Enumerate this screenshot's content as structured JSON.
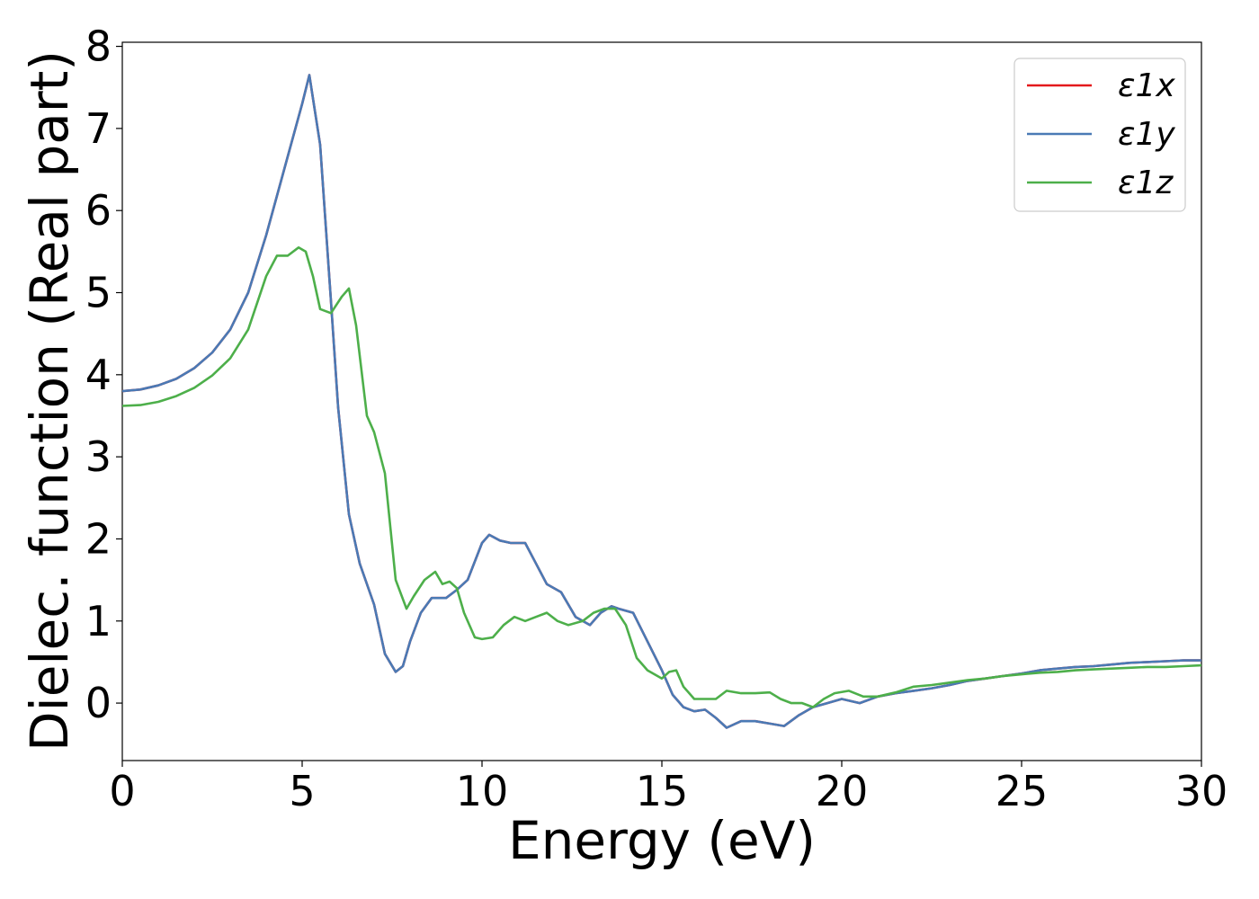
{
  "chart_data": {
    "type": "line",
    "xlabel": "Energy (eV)",
    "ylabel": "Dielec. function (Real part)",
    "xlim": [
      0,
      30
    ],
    "ylim": [
      -0.7,
      8.05
    ],
    "xticks": [
      0,
      5,
      10,
      15,
      20,
      25,
      30
    ],
    "yticks": [
      0,
      1,
      2,
      3,
      4,
      5,
      6,
      7,
      8
    ],
    "grid": false,
    "legend_position": "top-right",
    "series": [
      {
        "name": "ε1x",
        "color": "#e41a1c",
        "x": [
          0,
          0.5,
          1,
          1.5,
          2,
          2.5,
          3,
          3.5,
          4,
          4.5,
          5,
          5.2,
          5.5,
          5.8,
          6,
          6.3,
          6.6,
          7,
          7.3,
          7.6,
          7.8,
          8,
          8.3,
          8.6,
          9,
          9.3,
          9.6,
          10,
          10.2,
          10.5,
          10.8,
          11.2,
          11.5,
          11.8,
          12.2,
          12.6,
          13,
          13.3,
          13.6,
          13.8,
          14.2,
          14.6,
          15,
          15.3,
          15.6,
          15.9,
          16.2,
          16.5,
          16.8,
          17.2,
          17.6,
          18,
          18.4,
          18.8,
          19.2,
          19.6,
          20,
          20.5,
          21,
          21.5,
          22,
          22.5,
          23,
          23.5,
          24,
          24.5,
          25,
          25.5,
          26,
          26.5,
          27,
          27.5,
          28,
          28.5,
          29,
          29.5,
          30
        ],
        "values": [
          3.8,
          3.82,
          3.87,
          3.95,
          4.08,
          4.27,
          4.55,
          5.0,
          5.7,
          6.5,
          7.3,
          7.65,
          6.8,
          4.9,
          3.6,
          2.3,
          1.7,
          1.2,
          0.6,
          0.38,
          0.45,
          0.75,
          1.1,
          1.28,
          1.28,
          1.38,
          1.5,
          1.95,
          2.05,
          1.98,
          1.95,
          1.95,
          1.7,
          1.45,
          1.35,
          1.05,
          0.95,
          1.1,
          1.18,
          1.15,
          1.1,
          0.75,
          0.4,
          0.1,
          -0.05,
          -0.1,
          -0.08,
          -0.18,
          -0.3,
          -0.22,
          -0.22,
          -0.25,
          -0.28,
          -0.15,
          -0.05,
          0.0,
          0.05,
          0.0,
          0.08,
          0.12,
          0.15,
          0.18,
          0.22,
          0.27,
          0.3,
          0.33,
          0.36,
          0.4,
          0.42,
          0.44,
          0.45,
          0.47,
          0.49,
          0.5,
          0.51,
          0.52,
          0.52
        ]
      },
      {
        "name": "ε1y",
        "color": "#4a7ab5",
        "x": [
          0,
          0.5,
          1,
          1.5,
          2,
          2.5,
          3,
          3.5,
          4,
          4.5,
          5,
          5.2,
          5.5,
          5.8,
          6,
          6.3,
          6.6,
          7,
          7.3,
          7.6,
          7.8,
          8,
          8.3,
          8.6,
          9,
          9.3,
          9.6,
          10,
          10.2,
          10.5,
          10.8,
          11.2,
          11.5,
          11.8,
          12.2,
          12.6,
          13,
          13.3,
          13.6,
          13.8,
          14.2,
          14.6,
          15,
          15.3,
          15.6,
          15.9,
          16.2,
          16.5,
          16.8,
          17.2,
          17.6,
          18,
          18.4,
          18.8,
          19.2,
          19.6,
          20,
          20.5,
          21,
          21.5,
          22,
          22.5,
          23,
          23.5,
          24,
          24.5,
          25,
          25.5,
          26,
          26.5,
          27,
          27.5,
          28,
          28.5,
          29,
          29.5,
          30
        ],
        "values": [
          3.8,
          3.82,
          3.87,
          3.95,
          4.08,
          4.27,
          4.55,
          5.0,
          5.7,
          6.5,
          7.3,
          7.65,
          6.8,
          4.9,
          3.6,
          2.3,
          1.7,
          1.2,
          0.6,
          0.38,
          0.45,
          0.75,
          1.1,
          1.28,
          1.28,
          1.38,
          1.5,
          1.95,
          2.05,
          1.98,
          1.95,
          1.95,
          1.7,
          1.45,
          1.35,
          1.05,
          0.95,
          1.1,
          1.18,
          1.15,
          1.1,
          0.75,
          0.4,
          0.1,
          -0.05,
          -0.1,
          -0.08,
          -0.18,
          -0.3,
          -0.22,
          -0.22,
          -0.25,
          -0.28,
          -0.15,
          -0.05,
          0.0,
          0.05,
          0.0,
          0.08,
          0.12,
          0.15,
          0.18,
          0.22,
          0.27,
          0.3,
          0.33,
          0.36,
          0.4,
          0.42,
          0.44,
          0.45,
          0.47,
          0.49,
          0.5,
          0.51,
          0.52,
          0.52
        ]
      },
      {
        "name": "ε1z",
        "color": "#4daf4a",
        "x": [
          0,
          0.5,
          1,
          1.5,
          2,
          2.5,
          3,
          3.5,
          4,
          4.3,
          4.6,
          4.9,
          5.1,
          5.3,
          5.5,
          5.8,
          6.1,
          6.3,
          6.5,
          6.8,
          7,
          7.3,
          7.6,
          7.9,
          8.1,
          8.4,
          8.7,
          8.9,
          9.1,
          9.3,
          9.5,
          9.8,
          10,
          10.3,
          10.6,
          10.9,
          11.2,
          11.5,
          11.8,
          12.1,
          12.4,
          12.8,
          13.1,
          13.4,
          13.7,
          14,
          14.3,
          14.6,
          15,
          15.2,
          15.4,
          15.6,
          15.9,
          16.2,
          16.5,
          16.8,
          17.2,
          17.6,
          18,
          18.3,
          18.6,
          18.9,
          19.2,
          19.5,
          19.8,
          20.2,
          20.6,
          21,
          21.5,
          22,
          22.5,
          23,
          23.5,
          24,
          24.5,
          25,
          25.5,
          26,
          26.5,
          27,
          27.5,
          28,
          28.5,
          29,
          29.5,
          30
        ],
        "values": [
          3.62,
          3.63,
          3.67,
          3.74,
          3.84,
          3.99,
          4.2,
          4.55,
          5.2,
          5.45,
          5.45,
          5.55,
          5.5,
          5.2,
          4.8,
          4.75,
          4.95,
          5.05,
          4.6,
          3.5,
          3.3,
          2.8,
          1.5,
          1.15,
          1.3,
          1.5,
          1.6,
          1.45,
          1.48,
          1.4,
          1.1,
          0.8,
          0.78,
          0.8,
          0.95,
          1.05,
          1.0,
          1.05,
          1.1,
          1.0,
          0.95,
          1.0,
          1.1,
          1.15,
          1.15,
          0.95,
          0.55,
          0.4,
          0.3,
          0.38,
          0.4,
          0.2,
          0.05,
          0.05,
          0.05,
          0.15,
          0.12,
          0.12,
          0.13,
          0.05,
          0.0,
          0.0,
          -0.05,
          0.05,
          0.12,
          0.15,
          0.08,
          0.08,
          0.13,
          0.2,
          0.22,
          0.25,
          0.28,
          0.3,
          0.33,
          0.35,
          0.37,
          0.38,
          0.4,
          0.41,
          0.42,
          0.43,
          0.44,
          0.44,
          0.45,
          0.46
        ]
      }
    ]
  }
}
